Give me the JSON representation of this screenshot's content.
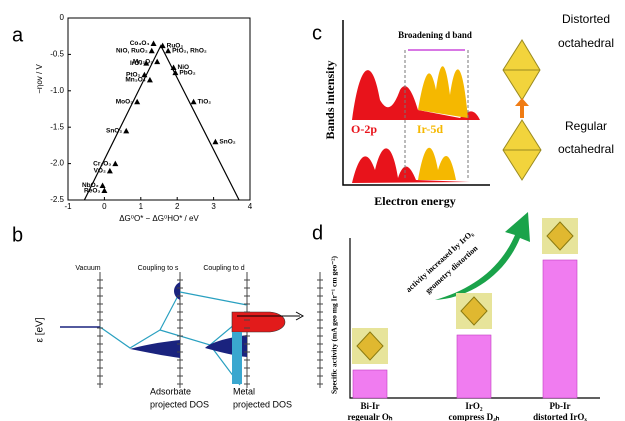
{
  "panel_labels": [
    "a",
    "b",
    "c",
    "d"
  ],
  "chart_data": [
    {
      "type": "scatter",
      "x_label": "ΔG⁰O* − ΔG⁰HO* / eV",
      "y_label": "−ηov / V",
      "xlim": [
        -1,
        4
      ],
      "ylim": [
        -2.5,
        0
      ],
      "xticks": [
        -1,
        0,
        1,
        2,
        3,
        4
      ],
      "yticks": [
        0,
        -0.5,
        {
          "value": -1,
          "label": "-1.0"
        },
        -1.5,
        {
          "value": -2,
          "label": "-2.0"
        },
        -2.5
      ],
      "series": [
        {
          "color": "#000000",
          "x": [
            1.35,
            1.6,
            1.3,
            1.75,
            1.15,
            1.45,
            1.9,
            1.95,
            1.1,
            1.25,
            0.9,
            2.45,
            0.6,
            3.05,
            0.3,
            0.15,
            -0.05,
            0.0
          ],
          "y": [
            -0.35,
            -0.38,
            -0.45,
            -0.45,
            -0.62,
            -0.6,
            -0.68,
            -0.75,
            -0.78,
            -0.85,
            -1.15,
            -1.15,
            -1.55,
            -1.7,
            -2.0,
            -2.1,
            -2.3,
            -2.37
          ],
          "labels": [
            "Co₃O₄",
            "RuO₂",
            "NiO, RuO₂",
            "PtO₂, RhO₂",
            "IrO₂",
            "Mn₂O₃",
            "NiO",
            "PbO₂",
            "PtO₂",
            "Mn₃O₄",
            "MoO₃",
            "TiO₂",
            "SnO₂",
            "SnO₂",
            "Cr₂O₃",
            "VO₂",
            "NbO₂",
            "ReO₃"
          ]
        }
      ],
      "lines": {
        "x": [
          -0.55,
          1.55,
          3.7
        ],
        "y": [
          -2.5,
          -0.38,
          -2.5
        ]
      }
    },
    {
      "type": "bar",
      "y_label": "Specific activity (mA geo mg Ir⁻¹ cm geo⁻²)",
      "categories": [
        [
          "Bi-Ir",
          "regeualr Oₕ"
        ],
        [
          "IrO₂",
          "compress D₄ₕ"
        ],
        [
          "Pb-Ir",
          "distorted IrOₓ"
        ]
      ],
      "values": [
        28,
        63,
        138
      ],
      "ylim": [
        0,
        150
      ],
      "color": "#f07cf0",
      "annotation": [
        "activity increased by IrO₆",
        "geometry distortion"
      ]
    }
  ],
  "diagram_b": {
    "levels": [
      "Vacuum",
      "Coupling to s",
      "Coupling to d"
    ],
    "y_label": "ε [eV]",
    "adsorbate_label": [
      "Adsorbate",
      "projected DOS"
    ],
    "metal_label": [
      "Metal",
      "projected DOS"
    ]
  },
  "diagram_c": {
    "title": "Broadening d band",
    "x_label": "Electron energy",
    "y_label": "Bands intensity",
    "bands": [
      "O-2p",
      "Ir-5d"
    ],
    "top_structure": [
      "Distorted",
      "octahedral"
    ],
    "bottom_structure": [
      "Regular",
      "octahedral"
    ]
  }
}
